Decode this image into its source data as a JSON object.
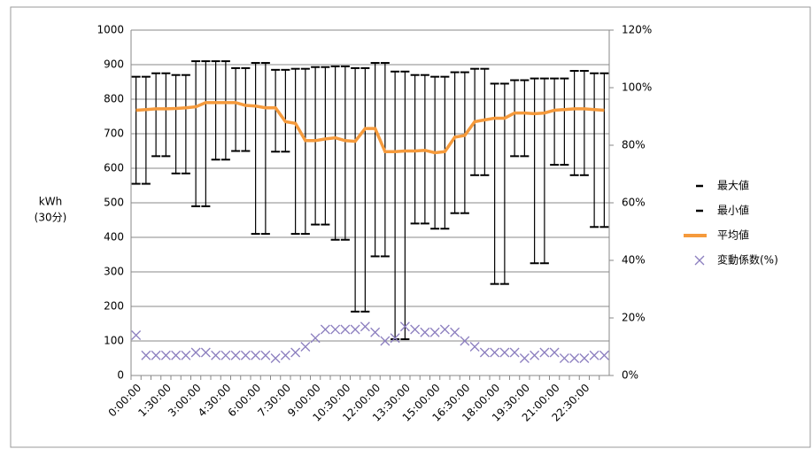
{
  "chart_data": {
    "type": "errorbar-line",
    "ylabel": [
      "kWh",
      "(30分)"
    ],
    "categories": [
      "0:00:00",
      null,
      null,
      "1:30:00",
      null,
      null,
      "3:00:00",
      null,
      null,
      "4:30:00",
      null,
      null,
      "6:00:00",
      null,
      null,
      "7:30:00",
      null,
      null,
      "9:00:00",
      null,
      null,
      "10:30:00",
      null,
      null,
      "12:00:00",
      null,
      null,
      "13:30:00",
      null,
      null,
      "15:00:00",
      null,
      null,
      "16:30:00",
      null,
      null,
      "18:00:00",
      null,
      null,
      "19:30:00",
      null,
      null,
      "21:00:00",
      null,
      null,
      "22:30:00",
      null,
      null
    ],
    "ylim": [
      0,
      1000
    ],
    "yticks": [
      0,
      100,
      200,
      300,
      400,
      500,
      600,
      700,
      800,
      900,
      1000
    ],
    "y2lim": [
      0,
      120
    ],
    "y2ticks": [
      {
        "value": 0,
        "label": "0%"
      },
      {
        "value": 20,
        "label": "20%"
      },
      {
        "value": 40,
        "label": "40%"
      },
      {
        "value": 60,
        "label": "60%"
      },
      {
        "value": 80,
        "label": "80%"
      },
      {
        "value": 100,
        "label": "100%"
      },
      {
        "value": 120,
        "label": "120%"
      }
    ],
    "grid": true,
    "legend": "right",
    "series": [
      {
        "name": "最大値",
        "style": "cap",
        "color": "#000000",
        "values": [
          865,
          865,
          875,
          875,
          870,
          870,
          910,
          910,
          910,
          910,
          890,
          890,
          905,
          905,
          885,
          885,
          888,
          888,
          893,
          893,
          895,
          895,
          890,
          890,
          905,
          905,
          880,
          880,
          870,
          870,
          865,
          865,
          878,
          878,
          888,
          888,
          845,
          845,
          855,
          855,
          860,
          860,
          860,
          860,
          882,
          882,
          875,
          875
        ]
      },
      {
        "name": "最小値",
        "style": "cap",
        "color": "#000000",
        "values": [
          555,
          555,
          635,
          635,
          585,
          585,
          490,
          490,
          625,
          625,
          650,
          650,
          410,
          410,
          648,
          648,
          410,
          410,
          437,
          437,
          393,
          393,
          185,
          185,
          345,
          345,
          105,
          105,
          440,
          440,
          425,
          425,
          470,
          470,
          580,
          580,
          265,
          265,
          635,
          635,
          325,
          325,
          610,
          610,
          580,
          580,
          430,
          430
        ]
      },
      {
        "name": "平均値",
        "style": "line",
        "color": "#f59a3c",
        "values": [
          768,
          770,
          772,
          772,
          773,
          775,
          778,
          790,
          790,
          790,
          790,
          782,
          780,
          775,
          775,
          735,
          730,
          680,
          680,
          685,
          688,
          680,
          678,
          715,
          715,
          648,
          648,
          650,
          650,
          652,
          645,
          648,
          690,
          695,
          735,
          740,
          745,
          745,
          760,
          760,
          758,
          760,
          768,
          770,
          772,
          772,
          770,
          768
        ]
      },
      {
        "name": "変動係数(%)",
        "style": "x",
        "axis": "y2",
        "color": "#8c7fbf",
        "values": [
          14,
          7,
          7,
          7,
          7,
          7,
          8,
          8,
          7,
          7,
          7,
          7,
          7,
          7,
          6,
          7,
          8,
          10,
          13,
          16,
          16,
          16,
          16,
          17,
          15,
          12,
          13,
          17,
          16,
          15,
          15,
          16,
          15,
          12,
          10,
          8,
          8,
          8,
          8,
          6,
          7,
          8,
          8,
          6,
          6,
          6,
          7,
          7
        ]
      }
    ]
  }
}
